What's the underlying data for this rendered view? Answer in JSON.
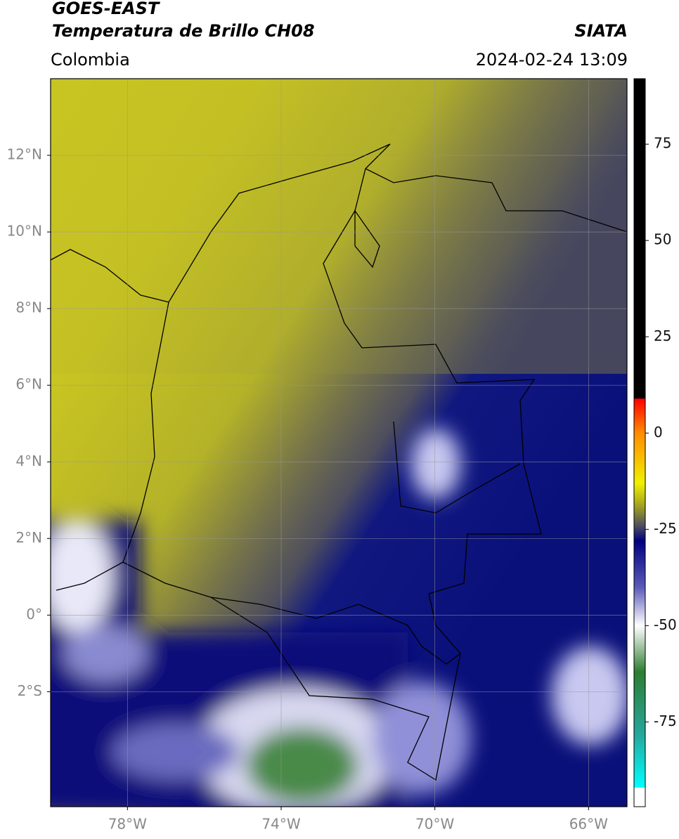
{
  "header": {
    "title": "GOES-EAST",
    "subtitle": "Temperatura de Brillo CH08",
    "source": "SIATA",
    "region": "Colombia",
    "datetime": "2024-02-24 13:09"
  },
  "map": {
    "xlim": [
      -80,
      -65
    ],
    "ylim": [
      -5,
      14
    ],
    "grid": true,
    "xticks": [
      {
        "value": -78,
        "label": "78°W"
      },
      {
        "value": -74,
        "label": "74°W"
      },
      {
        "value": -70,
        "label": "70°W"
      },
      {
        "value": -66,
        "label": "66°W"
      }
    ],
    "yticks": [
      {
        "value": 12,
        "label": "12°N"
      },
      {
        "value": 10,
        "label": "10°N"
      },
      {
        "value": 8,
        "label": "8°N"
      },
      {
        "value": 6,
        "label": "6°N"
      },
      {
        "value": 4,
        "label": "4°N"
      },
      {
        "value": 2,
        "label": "2°N"
      },
      {
        "value": 0,
        "label": "0°"
      },
      {
        "value": -2,
        "label": "2°S"
      }
    ]
  },
  "colorbar": {
    "lim": [
      -97,
      92
    ],
    "ticks": [
      75,
      50,
      25,
      0,
      -25,
      -50,
      -75
    ],
    "stops": [
      {
        "value": 92,
        "color": "#000000"
      },
      {
        "value": 9,
        "color": "#000000"
      },
      {
        "value": 8.9,
        "color": "#ff0000"
      },
      {
        "value": 0,
        "color": "#ff8c00"
      },
      {
        "value": -13,
        "color": "#f0f000"
      },
      {
        "value": -19,
        "color": "#a0a020"
      },
      {
        "value": -24,
        "color": "#505060"
      },
      {
        "value": -28,
        "color": "#000080"
      },
      {
        "value": -40,
        "color": "#5a5ab8"
      },
      {
        "value": -50,
        "color": "#ffffff"
      },
      {
        "value": -62,
        "color": "#2e7d32"
      },
      {
        "value": -78,
        "color": "#26a69a"
      },
      {
        "value": -92,
        "color": "#00ffff"
      },
      {
        "value": -92.1,
        "color": "#ffffff"
      },
      {
        "value": -97,
        "color": "#ffffff"
      }
    ]
  }
}
